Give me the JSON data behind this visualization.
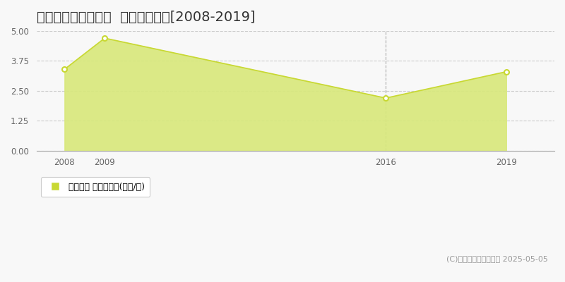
{
  "title": "岩手郡雫石町下町東  土地価格推移[2008-2019]",
  "years": [
    2008,
    2009,
    2016,
    2019
  ],
  "values": [
    3.4,
    4.7,
    2.2,
    3.3
  ],
  "ylim": [
    0,
    5
  ],
  "yticks": [
    0,
    1.25,
    2.5,
    3.75,
    5
  ],
  "line_color": "#c8d832",
  "fill_color": "#d8e87a",
  "fill_alpha": 0.9,
  "marker_color": "#c8d832",
  "marker_face": "#ffffff",
  "grid_color": "#cccccc",
  "background_color": "#f8f8f8",
  "legend_label": "土地価格 平均坪単価(万円/坪)",
  "copyright": "(C)土地価格ドットコム 2025-05-05",
  "title_fontsize": 14,
  "vline_color": "#aaaaaa",
  "vline_years": [
    2016
  ],
  "xlim_left": 2007.3,
  "xlim_right": 2020.2
}
